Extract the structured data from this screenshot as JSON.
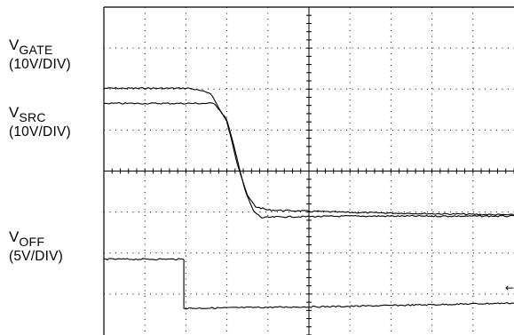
{
  "chart_data": {
    "type": "line",
    "grid": {
      "divisions_x": 10,
      "divisions_y": 8,
      "minor_per_division": 5,
      "style": "dotted"
    },
    "x_range_div": [
      0,
      10
    ],
    "y_range_div": [
      0,
      8
    ],
    "channels": [
      {
        "id": "gate",
        "label_main": "V",
        "label_sub": "GATE",
        "scale": "(10V/DIV)",
        "points_div": [
          [
            0,
            6.02
          ],
          [
            2.1,
            6.02
          ],
          [
            2.6,
            5.9
          ],
          [
            3.0,
            5.2
          ],
          [
            3.25,
            4.2
          ],
          [
            3.5,
            3.4
          ],
          [
            3.7,
            3.13
          ],
          [
            4.0,
            3.05
          ],
          [
            6.0,
            2.99
          ],
          [
            10,
            2.93
          ]
        ]
      },
      {
        "id": "src",
        "label_main": "V",
        "label_sub": "SRC",
        "scale": "(10V/DIV)",
        "points_div": [
          [
            0,
            5.65
          ],
          [
            2.7,
            5.65
          ],
          [
            3.0,
            5.25
          ],
          [
            3.25,
            4.3
          ],
          [
            3.45,
            3.5
          ],
          [
            3.65,
            3.02
          ],
          [
            3.85,
            2.86
          ],
          [
            4.2,
            2.88
          ],
          [
            6.0,
            2.9
          ],
          [
            10,
            2.9
          ]
        ]
      },
      {
        "id": "off",
        "label_main": "V",
        "label_sub": "OFF",
        "scale": "(5V/DIV)",
        "points_div": [
          [
            0,
            1.85
          ],
          [
            1.95,
            1.85
          ],
          [
            1.95,
            0.65
          ],
          [
            6.0,
            0.7
          ],
          [
            10,
            0.78
          ]
        ]
      }
    ],
    "markers": [
      {
        "symbol": "←",
        "y_div": 1.15
      }
    ]
  }
}
